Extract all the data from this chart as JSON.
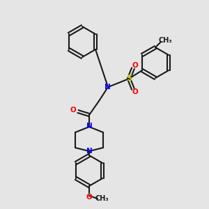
{
  "bg_color": "#e5e5e5",
  "bond_color": "#1a1a1a",
  "atom_colors": {
    "N": "#0000ff",
    "O": "#ff0000",
    "S": "#cccc00",
    "C": "#1a1a1a"
  },
  "lw": 1.5,
  "font_size": 7.5
}
